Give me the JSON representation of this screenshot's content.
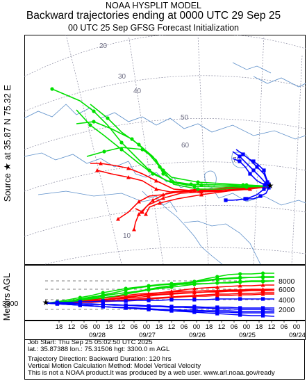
{
  "header": {
    "line1": "NOAA HYSPLIT MODEL",
    "line2": "Backward trajectories ending at 0000 UTC 29 Sep 25",
    "line3": "00 UTC 25 Sep    GFSG  Forecast Initialization"
  },
  "source_label": "Source ★ at   35.87 N   75.32 E",
  "map": {
    "parallel_labels": [
      "20",
      "30",
      "40",
      "50",
      "60",
      "70",
      "10"
    ],
    "colors": {
      "coast": "#5b8ec9",
      "grid": "#8a8aa0",
      "red": "#ff0000",
      "green": "#00e000",
      "blue": "#0000ff"
    }
  },
  "vertical": {
    "ylabel": "Meters AGL",
    "source_height": "3300",
    "y_ticks": [
      "8000",
      "6000",
      "4000",
      "2000"
    ],
    "time_ticks": [
      "18",
      "12",
      "06",
      "00",
      "18",
      "12",
      "06",
      "00",
      "18",
      "12",
      "06",
      "00",
      "18",
      "12",
      "06",
      "00",
      "18",
      "12",
      "06",
      "00"
    ],
    "date_labels": [
      "09/28",
      "09/27",
      "09/26",
      "09/25",
      "09/24"
    ]
  },
  "footer": {
    "line1": "Job Start: Thu Sep 25 05:02:50 UTC 2025",
    "line2": "lat.: 35.87388   lon.: 75.31506    hgt: 3300.0 m AGL",
    "line3": "Trajectory Direction: Backward       Duration: 120 hrs",
    "line4": "Vertical Motion Calculation Method: Model Vertical Velocity",
    "line5": "This is not a NOAA product.It was produced by a web user. www.arl.noaa.gov/ready"
  }
}
